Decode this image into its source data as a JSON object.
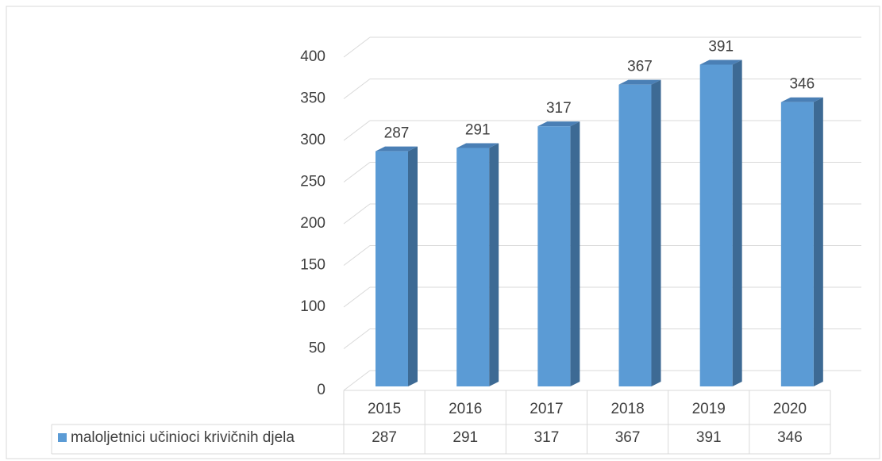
{
  "chart_data": {
    "type": "bar3d",
    "categories": [
      "2015",
      "2016",
      "2017",
      "2018",
      "2019",
      "2020"
    ],
    "series": [
      {
        "name": "maloljetnici učinioci krivičnih djela",
        "color": "#5b9bd5",
        "values": [
          287,
          291,
          317,
          367,
          391,
          346
        ]
      }
    ],
    "ylim": [
      0,
      400
    ],
    "yticks": [
      0,
      50,
      100,
      150,
      200,
      250,
      300,
      350,
      400
    ],
    "grid": true
  }
}
